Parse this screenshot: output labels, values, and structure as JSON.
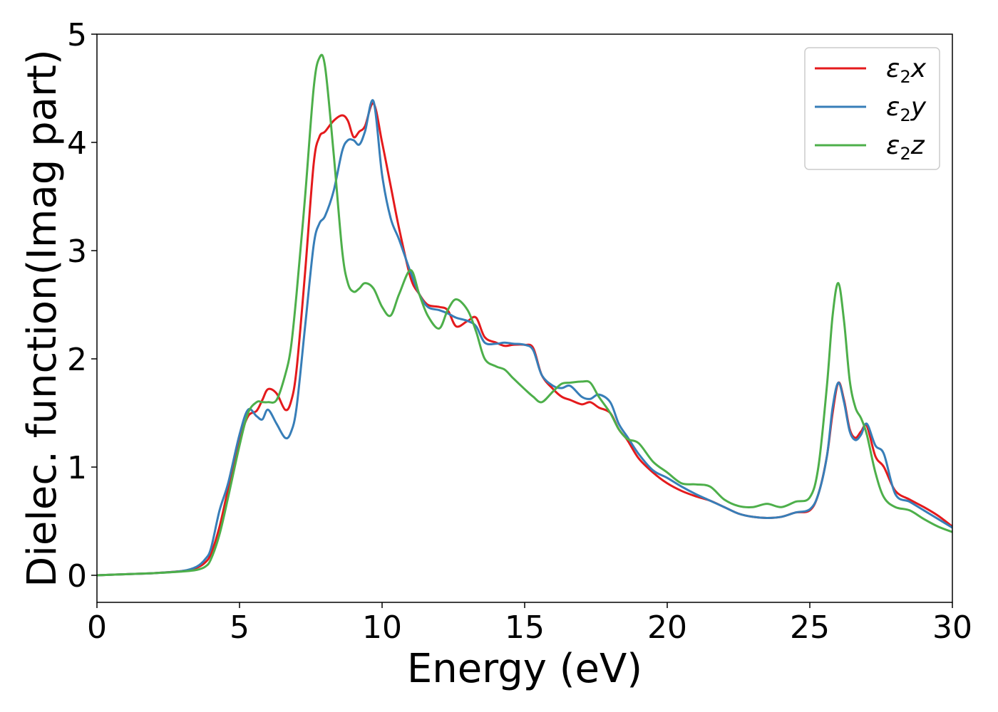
{
  "chart_data": {
    "type": "line",
    "xlabel": "Energy (eV)",
    "ylabel": "Dielec. function(Imag part)",
    "xlim": [
      0,
      30
    ],
    "ylim": [
      -0.25,
      5.0
    ],
    "xticks": [
      0,
      5,
      10,
      15,
      20,
      25,
      30
    ],
    "yticks": [
      0,
      1,
      2,
      3,
      4,
      5
    ],
    "grid": false,
    "legend_position": "top-right",
    "series": [
      {
        "name": "ε2x",
        "legend": {
          "base": "ε",
          "sub": "2",
          "var": "x"
        },
        "color": "#e41a1c",
        "x": [
          0,
          1,
          2,
          3,
          3.5,
          3.8,
          4.0,
          4.3,
          4.6,
          5.0,
          5.3,
          5.6,
          5.8,
          6.0,
          6.3,
          6.6,
          6.8,
          7.0,
          7.3,
          7.6,
          7.8,
          8.0,
          8.3,
          8.6,
          8.8,
          9.0,
          9.2,
          9.4,
          9.7,
          10.0,
          10.3,
          10.6,
          11.0,
          11.3,
          11.6,
          12.0,
          12.3,
          12.6,
          13.0,
          13.3,
          13.6,
          14.0,
          14.3,
          14.6,
          15.0,
          15.3,
          15.6,
          16.0,
          16.3,
          16.6,
          17.0,
          17.3,
          17.6,
          18.0,
          18.3,
          18.6,
          19.0,
          19.5,
          20.0,
          20.5,
          21.0,
          21.5,
          22.0,
          22.5,
          23.0,
          23.5,
          24.0,
          24.5,
          25.0,
          25.3,
          25.6,
          25.8,
          26.0,
          26.2,
          26.4,
          26.6,
          26.8,
          27.0,
          27.3,
          27.6,
          28.0,
          28.5,
          29.0,
          29.5,
          30.0
        ],
        "y": [
          0.0,
          0.01,
          0.02,
          0.04,
          0.07,
          0.12,
          0.2,
          0.45,
          0.8,
          1.25,
          1.47,
          1.52,
          1.62,
          1.72,
          1.68,
          1.53,
          1.6,
          1.9,
          2.8,
          3.8,
          4.05,
          4.1,
          4.2,
          4.25,
          4.2,
          4.05,
          4.1,
          4.15,
          4.36,
          4.0,
          3.6,
          3.2,
          2.75,
          2.6,
          2.5,
          2.48,
          2.45,
          2.3,
          2.35,
          2.38,
          2.2,
          2.15,
          2.12,
          2.13,
          2.13,
          2.1,
          1.85,
          1.72,
          1.65,
          1.62,
          1.58,
          1.6,
          1.55,
          1.5,
          1.35,
          1.25,
          1.08,
          0.95,
          0.85,
          0.78,
          0.73,
          0.69,
          0.63,
          0.57,
          0.54,
          0.53,
          0.54,
          0.58,
          0.6,
          0.75,
          1.1,
          1.5,
          1.78,
          1.62,
          1.35,
          1.27,
          1.33,
          1.38,
          1.1,
          1.0,
          0.78,
          0.7,
          0.63,
          0.55,
          0.45
        ]
      },
      {
        "name": "ε2y",
        "legend": {
          "base": "ε",
          "sub": "2",
          "var": "y"
        },
        "color": "#377eb8",
        "x": [
          0,
          1,
          2,
          3,
          3.5,
          3.8,
          4.0,
          4.3,
          4.6,
          5.0,
          5.3,
          5.6,
          5.8,
          6.0,
          6.3,
          6.6,
          6.8,
          7.0,
          7.3,
          7.6,
          7.8,
          8.0,
          8.3,
          8.6,
          8.8,
          9.0,
          9.2,
          9.4,
          9.7,
          10.0,
          10.3,
          10.6,
          11.0,
          11.3,
          11.6,
          12.0,
          12.3,
          12.6,
          13.0,
          13.3,
          13.6,
          14.0,
          14.3,
          14.6,
          15.0,
          15.3,
          15.6,
          16.0,
          16.3,
          16.6,
          17.0,
          17.3,
          17.6,
          18.0,
          18.3,
          18.6,
          19.0,
          19.5,
          20.0,
          20.5,
          21.0,
          21.5,
          22.0,
          22.5,
          23.0,
          23.5,
          24.0,
          24.5,
          25.0,
          25.3,
          25.6,
          25.8,
          26.0,
          26.2,
          26.4,
          26.6,
          26.8,
          27.0,
          27.3,
          27.6,
          28.0,
          28.5,
          29.0,
          29.5,
          30.0
        ],
        "y": [
          0.0,
          0.01,
          0.02,
          0.04,
          0.08,
          0.15,
          0.25,
          0.6,
          0.85,
          1.3,
          1.53,
          1.47,
          1.44,
          1.53,
          1.4,
          1.27,
          1.32,
          1.55,
          2.3,
          3.05,
          3.25,
          3.32,
          3.55,
          3.92,
          4.02,
          4.02,
          3.98,
          4.1,
          4.38,
          3.7,
          3.3,
          3.1,
          2.8,
          2.6,
          2.48,
          2.45,
          2.42,
          2.38,
          2.35,
          2.3,
          2.15,
          2.14,
          2.15,
          2.14,
          2.13,
          2.08,
          1.85,
          1.75,
          1.73,
          1.75,
          1.65,
          1.63,
          1.67,
          1.6,
          1.4,
          1.28,
          1.12,
          0.97,
          0.9,
          0.82,
          0.75,
          0.69,
          0.63,
          0.57,
          0.54,
          0.53,
          0.54,
          0.58,
          0.61,
          0.75,
          1.1,
          1.55,
          1.78,
          1.6,
          1.33,
          1.25,
          1.3,
          1.4,
          1.2,
          1.12,
          0.75,
          0.68,
          0.6,
          0.52,
          0.44
        ]
      },
      {
        "name": "ε2z",
        "legend": {
          "base": "ε",
          "sub": "2",
          "var": "z"
        },
        "color": "#4daf4a",
        "x": [
          0,
          1,
          2,
          3,
          3.5,
          3.8,
          4.0,
          4.3,
          4.6,
          5.0,
          5.3,
          5.6,
          5.8,
          6.0,
          6.3,
          6.6,
          6.8,
          7.0,
          7.3,
          7.6,
          7.8,
          8.0,
          8.3,
          8.6,
          8.8,
          9.0,
          9.2,
          9.4,
          9.7,
          10.0,
          10.3,
          10.6,
          11.0,
          11.3,
          11.6,
          12.0,
          12.3,
          12.6,
          13.0,
          13.3,
          13.6,
          14.0,
          14.3,
          14.6,
          15.0,
          15.3,
          15.6,
          16.0,
          16.3,
          16.6,
          17.0,
          17.3,
          17.6,
          18.0,
          18.3,
          18.6,
          19.0,
          19.5,
          20.0,
          20.5,
          21.0,
          21.5,
          22.0,
          22.5,
          23.0,
          23.5,
          24.0,
          24.5,
          25.0,
          25.3,
          25.6,
          25.8,
          26.0,
          26.2,
          26.4,
          26.6,
          26.8,
          27.0,
          27.3,
          27.6,
          28.0,
          28.5,
          29.0,
          29.5,
          30.0
        ],
        "y": [
          0.0,
          0.01,
          0.02,
          0.035,
          0.05,
          0.08,
          0.15,
          0.38,
          0.72,
          1.2,
          1.5,
          1.6,
          1.6,
          1.6,
          1.62,
          1.85,
          2.1,
          2.6,
          3.5,
          4.5,
          4.78,
          4.7,
          3.9,
          3.0,
          2.7,
          2.62,
          2.65,
          2.7,
          2.65,
          2.48,
          2.4,
          2.6,
          2.82,
          2.6,
          2.4,
          2.28,
          2.45,
          2.55,
          2.45,
          2.25,
          2.0,
          1.93,
          1.9,
          1.82,
          1.72,
          1.65,
          1.6,
          1.7,
          1.77,
          1.78,
          1.79,
          1.78,
          1.65,
          1.5,
          1.35,
          1.26,
          1.22,
          1.05,
          0.95,
          0.85,
          0.84,
          0.82,
          0.7,
          0.64,
          0.63,
          0.66,
          0.63,
          0.68,
          0.72,
          1.0,
          1.75,
          2.4,
          2.7,
          2.35,
          1.8,
          1.55,
          1.45,
          1.3,
          0.95,
          0.72,
          0.63,
          0.6,
          0.52,
          0.45,
          0.4
        ]
      }
    ]
  }
}
